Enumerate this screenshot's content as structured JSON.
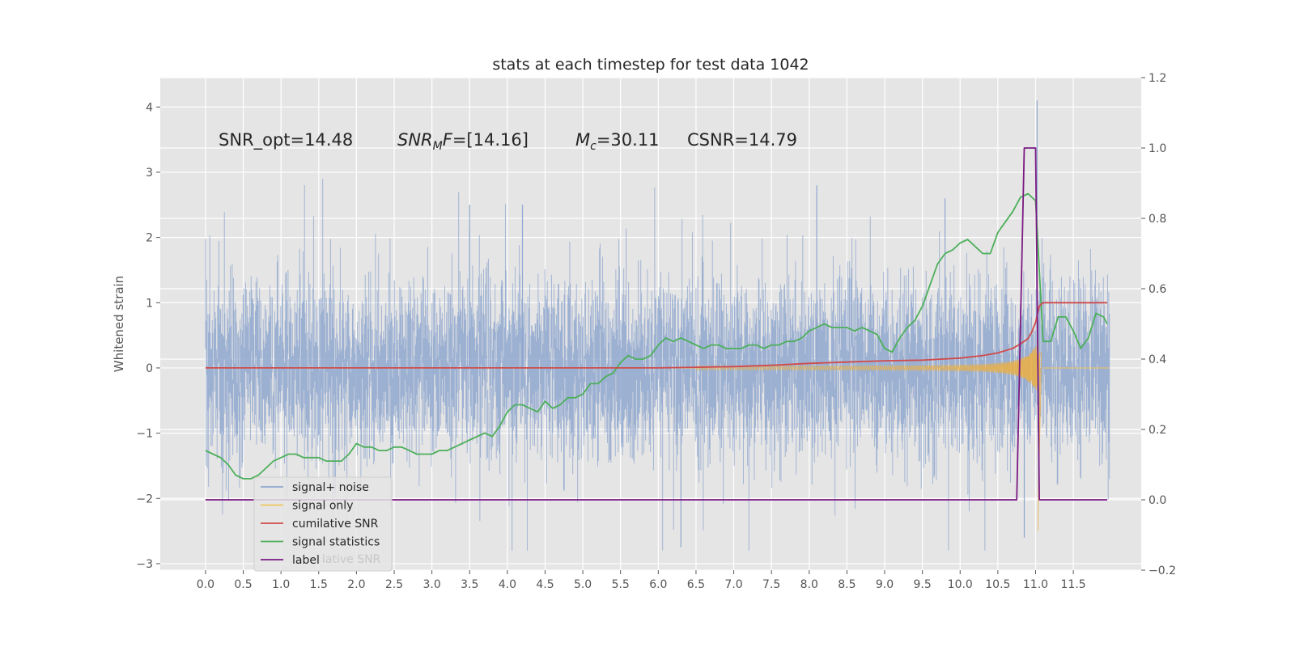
{
  "chart_data": {
    "type": "line",
    "title": "stats at each timestep for test data 1042",
    "ylabel_left": "Whitened strain",
    "ylabel_right": "",
    "xlim": [
      -0.6,
      12.4
    ],
    "ylim_left": [
      -3.1,
      4.45
    ],
    "ylim_right": [
      -0.2,
      1.2
    ],
    "xticks": [
      "0.0",
      "0.5",
      "1.0",
      "1.5",
      "2.0",
      "2.5",
      "3.0",
      "3.5",
      "4.0",
      "4.5",
      "5.0",
      "5.5",
      "6.0",
      "6.5",
      "7.0",
      "7.5",
      "8.0",
      "8.5",
      "9.0",
      "9.5",
      "10.0",
      "10.5",
      "11.0",
      "11.5"
    ],
    "yticks_left": [
      "4",
      "3",
      "2",
      "1",
      "0",
      "−1",
      "−2",
      "−3"
    ],
    "yticks_right": [
      "1.2",
      "1.0",
      "0.8",
      "0.6",
      "0.4",
      "0.2",
      "0.0",
      "−0.2"
    ],
    "grid": true,
    "legend_position": "lower-left",
    "annotations": {
      "snr_opt": "SNR_opt=14.48",
      "snr_mf_sym": "SNR",
      "snr_mf_sub": "M",
      "snr_mf_tail": "F=[14.16]",
      "mc_sym": "M",
      "mc_sub": "c",
      "mc_tail": "=30.11",
      "csnr": "CSNR=14.79"
    },
    "legend": [
      {
        "label": "signal+ noise",
        "color": "#8fa7cf"
      },
      {
        "label": "signal only",
        "color": "#f2c45a"
      },
      {
        "label": "cumilative SNR",
        "color": "#d04a4a"
      },
      {
        "label": "signal statistics",
        "color": "#4caf5a"
      },
      {
        "label": "label",
        "color": "#7b1a82"
      }
    ],
    "legend_ghost_text": "lative SNR",
    "series": [
      {
        "name": "signal statistics",
        "axis": "right",
        "color": "#4caf5a",
        "x": [
          0.0,
          0.1,
          0.2,
          0.3,
          0.4,
          0.5,
          0.6,
          0.7,
          0.8,
          0.9,
          1.0,
          1.1,
          1.2,
          1.3,
          1.4,
          1.5,
          1.6,
          1.7,
          1.8,
          1.9,
          2.0,
          2.1,
          2.2,
          2.3,
          2.4,
          2.5,
          2.6,
          2.7,
          2.8,
          2.9,
          3.0,
          3.1,
          3.2,
          3.3,
          3.4,
          3.5,
          3.6,
          3.7,
          3.8,
          3.9,
          4.0,
          4.1,
          4.2,
          4.3,
          4.4,
          4.5,
          4.6,
          4.7,
          4.8,
          4.9,
          5.0,
          5.1,
          5.2,
          5.3,
          5.4,
          5.5,
          5.6,
          5.7,
          5.8,
          5.9,
          6.0,
          6.1,
          6.2,
          6.3,
          6.4,
          6.5,
          6.6,
          6.7,
          6.8,
          6.9,
          7.0,
          7.1,
          7.2,
          7.3,
          7.4,
          7.5,
          7.6,
          7.7,
          7.8,
          7.9,
          8.0,
          8.1,
          8.2,
          8.3,
          8.4,
          8.5,
          8.6,
          8.7,
          8.8,
          8.9,
          9.0,
          9.1,
          9.2,
          9.3,
          9.4,
          9.5,
          9.6,
          9.7,
          9.8,
          9.9,
          10.0,
          10.1,
          10.2,
          10.3,
          10.4,
          10.5,
          10.6,
          10.7,
          10.8,
          10.9,
          11.0,
          11.1,
          11.2,
          11.3,
          11.4,
          11.5,
          11.6,
          11.7,
          11.8,
          11.9,
          11.95
        ],
        "values": [
          0.14,
          0.13,
          0.12,
          0.1,
          0.07,
          0.06,
          0.06,
          0.07,
          0.09,
          0.11,
          0.12,
          0.13,
          0.13,
          0.12,
          0.12,
          0.12,
          0.11,
          0.11,
          0.11,
          0.13,
          0.16,
          0.15,
          0.15,
          0.14,
          0.14,
          0.15,
          0.15,
          0.14,
          0.13,
          0.13,
          0.13,
          0.14,
          0.14,
          0.15,
          0.16,
          0.17,
          0.18,
          0.19,
          0.18,
          0.21,
          0.25,
          0.27,
          0.27,
          0.26,
          0.25,
          0.28,
          0.26,
          0.27,
          0.29,
          0.29,
          0.3,
          0.33,
          0.33,
          0.35,
          0.36,
          0.39,
          0.41,
          0.4,
          0.4,
          0.41,
          0.44,
          0.46,
          0.45,
          0.46,
          0.45,
          0.44,
          0.43,
          0.44,
          0.44,
          0.43,
          0.43,
          0.43,
          0.44,
          0.44,
          0.43,
          0.44,
          0.44,
          0.45,
          0.45,
          0.46,
          0.48,
          0.49,
          0.5,
          0.49,
          0.49,
          0.49,
          0.48,
          0.49,
          0.48,
          0.47,
          0.43,
          0.42,
          0.46,
          0.49,
          0.51,
          0.55,
          0.61,
          0.67,
          0.7,
          0.71,
          0.73,
          0.74,
          0.72,
          0.7,
          0.7,
          0.76,
          0.79,
          0.82,
          0.86,
          0.87,
          0.85,
          0.45,
          0.45,
          0.52,
          0.52,
          0.48,
          0.43,
          0.46,
          0.53,
          0.52,
          0.5
        ]
      },
      {
        "name": "cumilative SNR",
        "axis": "left",
        "color": "#d04a4a",
        "x": [
          0.0,
          1.0,
          2.0,
          3.0,
          4.0,
          5.0,
          6.0,
          6.5,
          7.0,
          7.5,
          8.0,
          8.5,
          9.0,
          9.5,
          10.0,
          10.3,
          10.5,
          10.7,
          10.8,
          10.9,
          10.95,
          11.0,
          11.05,
          11.1,
          11.95
        ],
        "values": [
          0.0,
          0.0,
          0.0,
          0.0,
          0.0,
          0.0,
          0.0,
          0.01,
          0.02,
          0.04,
          0.07,
          0.09,
          0.11,
          0.12,
          0.15,
          0.19,
          0.23,
          0.3,
          0.37,
          0.45,
          0.55,
          0.7,
          0.95,
          1.0,
          1.0
        ]
      },
      {
        "name": "label",
        "axis": "right",
        "color": "#7b1a82",
        "x": [
          0.0,
          10.75,
          10.85,
          11.0,
          11.05,
          11.95
        ],
        "values": [
          0.0,
          0.0,
          1.0,
          1.0,
          0.0,
          0.0
        ]
      }
    ]
  }
}
